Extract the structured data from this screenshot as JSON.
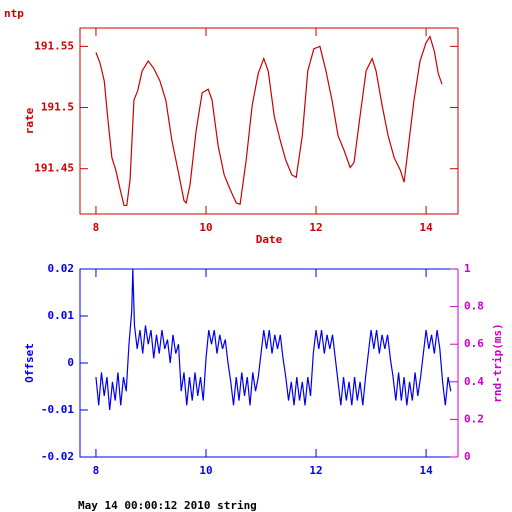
{
  "chart_data": [
    {
      "type": "line",
      "title": "ntp",
      "xlabel": "Date",
      "ylabel": "rate",
      "xlim": [
        7.71,
        14.58
      ],
      "ylim": [
        191.413,
        191.565
      ],
      "xticks": [
        8,
        10,
        12,
        14
      ],
      "yticks": [
        191.45,
        191.5,
        191.55
      ],
      "series": [
        {
          "color": "#cc0000",
          "x": [
            8.0,
            8.07,
            8.15,
            8.22,
            8.29,
            8.36,
            8.44,
            8.51,
            8.56,
            8.62,
            8.69,
            8.76,
            8.84,
            8.95,
            9.05,
            9.16,
            9.27,
            9.38,
            9.49,
            9.6,
            9.64,
            9.71,
            9.82,
            9.93,
            10.04,
            10.11,
            10.22,
            10.33,
            10.44,
            10.55,
            10.62,
            10.73,
            10.84,
            10.95,
            11.05,
            11.13,
            11.24,
            11.35,
            11.45,
            11.56,
            11.64,
            11.75,
            11.85,
            11.96,
            12.07,
            12.18,
            12.29,
            12.4,
            12.51,
            12.62,
            12.69,
            12.8,
            12.91,
            13.02,
            13.09,
            13.2,
            13.31,
            13.42,
            13.53,
            13.6,
            13.67,
            13.78,
            13.89,
            14.0,
            14.07,
            14.15,
            14.22,
            14.29
          ],
          "values": [
            191.545,
            191.537,
            191.522,
            191.489,
            191.459,
            191.449,
            191.433,
            191.42,
            191.42,
            191.441,
            191.506,
            191.514,
            191.53,
            191.538,
            191.532,
            191.522,
            191.506,
            191.473,
            191.449,
            191.424,
            191.422,
            191.437,
            191.481,
            191.512,
            191.515,
            191.506,
            191.469,
            191.445,
            191.433,
            191.422,
            191.421,
            191.457,
            191.502,
            191.528,
            191.54,
            191.53,
            191.493,
            191.473,
            191.457,
            191.445,
            191.443,
            191.477,
            191.53,
            191.548,
            191.55,
            191.53,
            191.506,
            191.477,
            191.465,
            191.451,
            191.455,
            191.493,
            191.53,
            191.54,
            191.53,
            191.502,
            191.477,
            191.459,
            191.449,
            191.439,
            191.465,
            191.506,
            191.538,
            191.553,
            191.558,
            191.546,
            191.528,
            191.519
          ]
        }
      ]
    },
    {
      "type": "line",
      "ylabel": "Offset",
      "y2label": "rnd-trip(ms)",
      "xlim": [
        7.71,
        14.58
      ],
      "ylim": [
        -0.02,
        0.02
      ],
      "y2lim": [
        0,
        1
      ],
      "xticks": [
        8,
        10,
        12,
        14
      ],
      "yticks": [
        -0.02,
        -0.01,
        0,
        0.01,
        0.02
      ],
      "y2ticks": [
        0,
        0.2,
        0.4,
        0.6,
        0.8,
        1
      ],
      "series": [
        {
          "color": "#0000ee",
          "x": [
            8.0,
            8.05,
            8.1,
            8.15,
            8.2,
            8.25,
            8.3,
            8.35,
            8.4,
            8.45,
            8.5,
            8.55,
            8.6,
            8.65,
            8.67,
            8.7,
            8.75,
            8.8,
            8.85,
            8.9,
            8.95,
            9.0,
            9.05,
            9.1,
            9.15,
            9.2,
            9.25,
            9.3,
            9.35,
            9.4,
            9.45,
            9.5,
            9.55,
            9.6,
            9.65,
            9.7,
            9.75,
            9.8,
            9.85,
            9.9,
            9.95,
            10.0,
            10.05,
            10.1,
            10.15,
            10.2,
            10.25,
            10.3,
            10.35,
            10.4,
            10.45,
            10.5,
            10.55,
            10.6,
            10.65,
            10.7,
            10.75,
            10.8,
            10.85,
            10.9,
            10.95,
            11.0,
            11.05,
            11.1,
            11.15,
            11.2,
            11.25,
            11.3,
            11.35,
            11.4,
            11.45,
            11.5,
            11.55,
            11.6,
            11.65,
            11.7,
            11.75,
            11.8,
            11.85,
            11.9,
            11.95,
            12.0,
            12.05,
            12.1,
            12.15,
            12.2,
            12.25,
            12.3,
            12.35,
            12.4,
            12.45,
            12.5,
            12.55,
            12.6,
            12.65,
            12.7,
            12.75,
            12.8,
            12.85,
            12.9,
            12.95,
            13.0,
            13.05,
            13.1,
            13.15,
            13.2,
            13.25,
            13.3,
            13.35,
            13.4,
            13.45,
            13.5,
            13.55,
            13.6,
            13.65,
            13.7,
            13.75,
            13.8,
            13.85,
            13.9,
            13.95,
            14.0,
            14.05,
            14.1,
            14.15,
            14.2,
            14.25,
            14.3,
            14.35,
            14.4,
            14.45
          ],
          "values": [
            -0.003,
            -0.009,
            -0.002,
            -0.007,
            -0.003,
            -0.01,
            -0.004,
            -0.008,
            -0.002,
            -0.009,
            -0.003,
            -0.006,
            0.004,
            0.011,
            0.02,
            0.008,
            0.003,
            0.007,
            0.002,
            0.008,
            0.004,
            0.007,
            0.001,
            0.006,
            0.002,
            0.007,
            0.003,
            0.005,
            0.0,
            0.006,
            0.002,
            0.004,
            -0.006,
            -0.002,
            -0.009,
            -0.003,
            -0.008,
            -0.002,
            -0.007,
            -0.003,
            -0.008,
            0.001,
            0.007,
            0.004,
            0.007,
            0.002,
            0.006,
            0.003,
            0.005,
            0.0,
            -0.004,
            -0.009,
            -0.003,
            -0.008,
            -0.002,
            -0.007,
            -0.003,
            -0.009,
            -0.002,
            -0.006,
            -0.003,
            0.002,
            0.007,
            0.003,
            0.007,
            0.002,
            0.006,
            0.003,
            0.006,
            0.001,
            -0.003,
            -0.008,
            -0.004,
            -0.009,
            -0.003,
            -0.008,
            -0.004,
            -0.009,
            -0.003,
            -0.007,
            0.002,
            0.007,
            0.003,
            0.007,
            0.002,
            0.006,
            0.003,
            0.006,
            0.001,
            -0.004,
            -0.009,
            -0.003,
            -0.008,
            -0.004,
            -0.009,
            -0.003,
            -0.008,
            -0.004,
            -0.009,
            -0.003,
            0.002,
            0.007,
            0.003,
            0.007,
            0.002,
            0.006,
            0.003,
            0.006,
            0.001,
            -0.003,
            -0.008,
            -0.002,
            -0.008,
            -0.003,
            -0.009,
            -0.004,
            -0.008,
            -0.002,
            -0.007,
            -0.003,
            0.002,
            0.007,
            0.003,
            0.006,
            0.002,
            0.007,
            0.003,
            -0.004,
            -0.009,
            -0.003,
            -0.006
          ]
        }
      ]
    }
  ],
  "footer": "May 14 00:00:12 2010 string"
}
